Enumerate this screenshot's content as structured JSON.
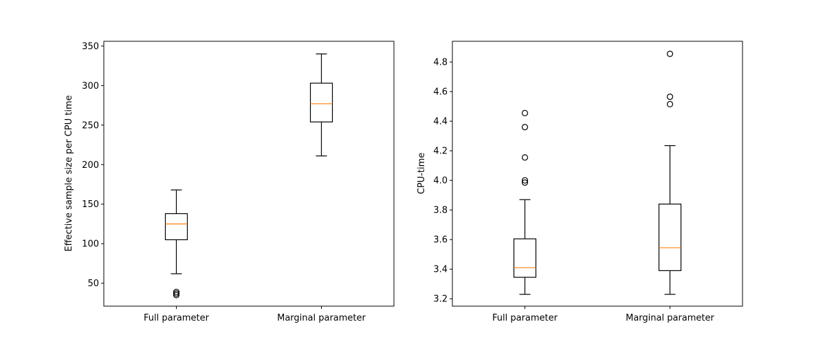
{
  "chart_data": [
    {
      "type": "box",
      "title": "",
      "xlabel": "",
      "ylabel": "Effective sample size per CPU time",
      "ylim": [
        21,
        356
      ],
      "yticks": [
        50,
        100,
        150,
        200,
        250,
        300,
        350
      ],
      "categories": [
        "Full parameter",
        "Marginal parameter"
      ],
      "boxes": [
        {
          "category": "Full parameter",
          "whisker_low": 62,
          "q1": 105,
          "median": 125,
          "q3": 138,
          "whisker_high": 168,
          "outliers": [
            35,
            37,
            39
          ]
        },
        {
          "category": "Marginal parameter",
          "whisker_low": 211,
          "q1": 254,
          "median": 277,
          "q3": 303,
          "whisker_high": 340,
          "outliers": []
        }
      ],
      "grid": false,
      "colors": {
        "box": "#000000",
        "median": "#ff7f0e"
      }
    },
    {
      "type": "box",
      "title": "",
      "xlabel": "",
      "ylabel": "CPU-time",
      "ylim": [
        3.15,
        4.94
      ],
      "yticks": [
        3.2,
        3.4,
        3.6,
        3.8,
        4.0,
        4.2,
        4.4,
        4.6,
        4.8
      ],
      "categories": [
        "Full parameter",
        "Marginal parameter"
      ],
      "boxes": [
        {
          "category": "Full parameter",
          "whisker_low": 3.23,
          "q1": 3.345,
          "median": 3.41,
          "q3": 3.605,
          "whisker_high": 3.87,
          "outliers": [
            3.985,
            4.0,
            4.155,
            4.36,
            4.455
          ]
        },
        {
          "category": "Marginal parameter",
          "whisker_low": 3.23,
          "q1": 3.39,
          "median": 3.545,
          "q3": 3.84,
          "whisker_high": 4.235,
          "outliers": [
            4.515,
            4.565,
            4.855
          ]
        }
      ],
      "grid": false,
      "colors": {
        "box": "#000000",
        "median": "#ff7f0e"
      }
    }
  ]
}
